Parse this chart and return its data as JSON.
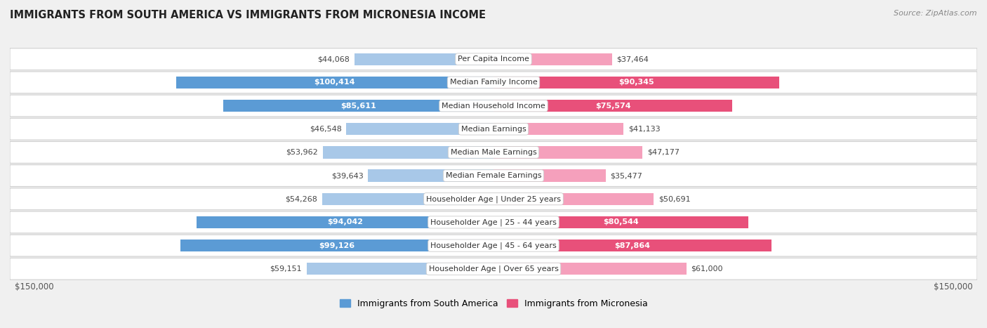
{
  "title": "IMMIGRANTS FROM SOUTH AMERICA VS IMMIGRANTS FROM MICRONESIA INCOME",
  "source": "Source: ZipAtlas.com",
  "categories": [
    "Per Capita Income",
    "Median Family Income",
    "Median Household Income",
    "Median Earnings",
    "Median Male Earnings",
    "Median Female Earnings",
    "Householder Age | Under 25 years",
    "Householder Age | 25 - 44 years",
    "Householder Age | 45 - 64 years",
    "Householder Age | Over 65 years"
  ],
  "south_america_values": [
    44068,
    100414,
    85611,
    46548,
    53962,
    39643,
    54268,
    94042,
    99126,
    59151
  ],
  "micronesia_values": [
    37464,
    90345,
    75574,
    41133,
    47177,
    35477,
    50691,
    80544,
    87864,
    61000
  ],
  "south_america_labels": [
    "$44,068",
    "$100,414",
    "$85,611",
    "$46,548",
    "$53,962",
    "$39,643",
    "$54,268",
    "$94,042",
    "$99,126",
    "$59,151"
  ],
  "micronesia_labels": [
    "$37,464",
    "$90,345",
    "$75,574",
    "$41,133",
    "$47,177",
    "$35,477",
    "$50,691",
    "$80,544",
    "$87,864",
    "$61,000"
  ],
  "max_value": 150000,
  "color_south_america_light": "#a8c8e8",
  "color_south_america_dark": "#5b9bd5",
  "color_micronesia_light": "#f5a0bc",
  "color_micronesia_dark": "#e8507a",
  "background_color": "#f0f0f0",
  "row_background": "#ffffff",
  "row_border": "#d0d0d0",
  "bar_height": 0.52,
  "label_threshold": 65000,
  "legend_south_america": "Immigrants from South America",
  "legend_micronesia": "Immigrants from Micronesia",
  "xlabel_left": "$150,000",
  "xlabel_right": "$150,000",
  "category_label_fontsize": 8,
  "value_label_fontsize": 8,
  "title_fontsize": 10.5,
  "source_fontsize": 8
}
